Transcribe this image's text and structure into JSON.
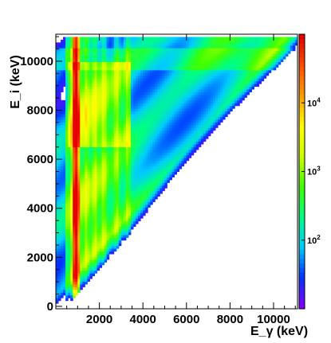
{
  "chart_data": {
    "type": "heatmap",
    "title": "",
    "xlabel": "E_γ (keV)",
    "ylabel": "E_i (keV)",
    "xlim": [
      0,
      11100
    ],
    "ylim": [
      -100,
      11100
    ],
    "x_ticks": [
      "2000",
      "4000",
      "6000",
      "8000",
      "10000"
    ],
    "x_tick_values": [
      2000,
      4000,
      6000,
      8000,
      10000
    ],
    "y_ticks": [
      "0",
      "2000",
      "4000",
      "6000",
      "8000",
      "10000"
    ],
    "y_tick_values": [
      0,
      2000,
      4000,
      6000,
      8000,
      10000
    ],
    "z_scale": "log",
    "z_range": [
      10,
      100000
    ],
    "colorbar_ticks": [
      {
        "base": "10",
        "exp": "2",
        "value": 100
      },
      {
        "base": "10",
        "exp": "3",
        "value": 1000
      },
      {
        "base": "10",
        "exp": "4",
        "value": 10000
      }
    ],
    "grid": false,
    "colormap": [
      "#8000ff",
      "#0033ff",
      "#00ccff",
      "#00ff80",
      "#40ff00",
      "#ccff00",
      "#ffff00",
      "#ffa000",
      "#ff5000",
      "#e80000"
    ],
    "features": {
      "diagonal_cutoff": "E_gamma = E_i",
      "max_energy_keV": 10700,
      "strong_lines_keV": [
        850,
        1000
      ],
      "secondary_lines_keV": [
        1400,
        1800,
        2200,
        2800,
        3300
      ],
      "bright_region": {
        "x": [
          600,
          3400
        ],
        "y": [
          6500,
          10000
        ]
      }
    }
  }
}
